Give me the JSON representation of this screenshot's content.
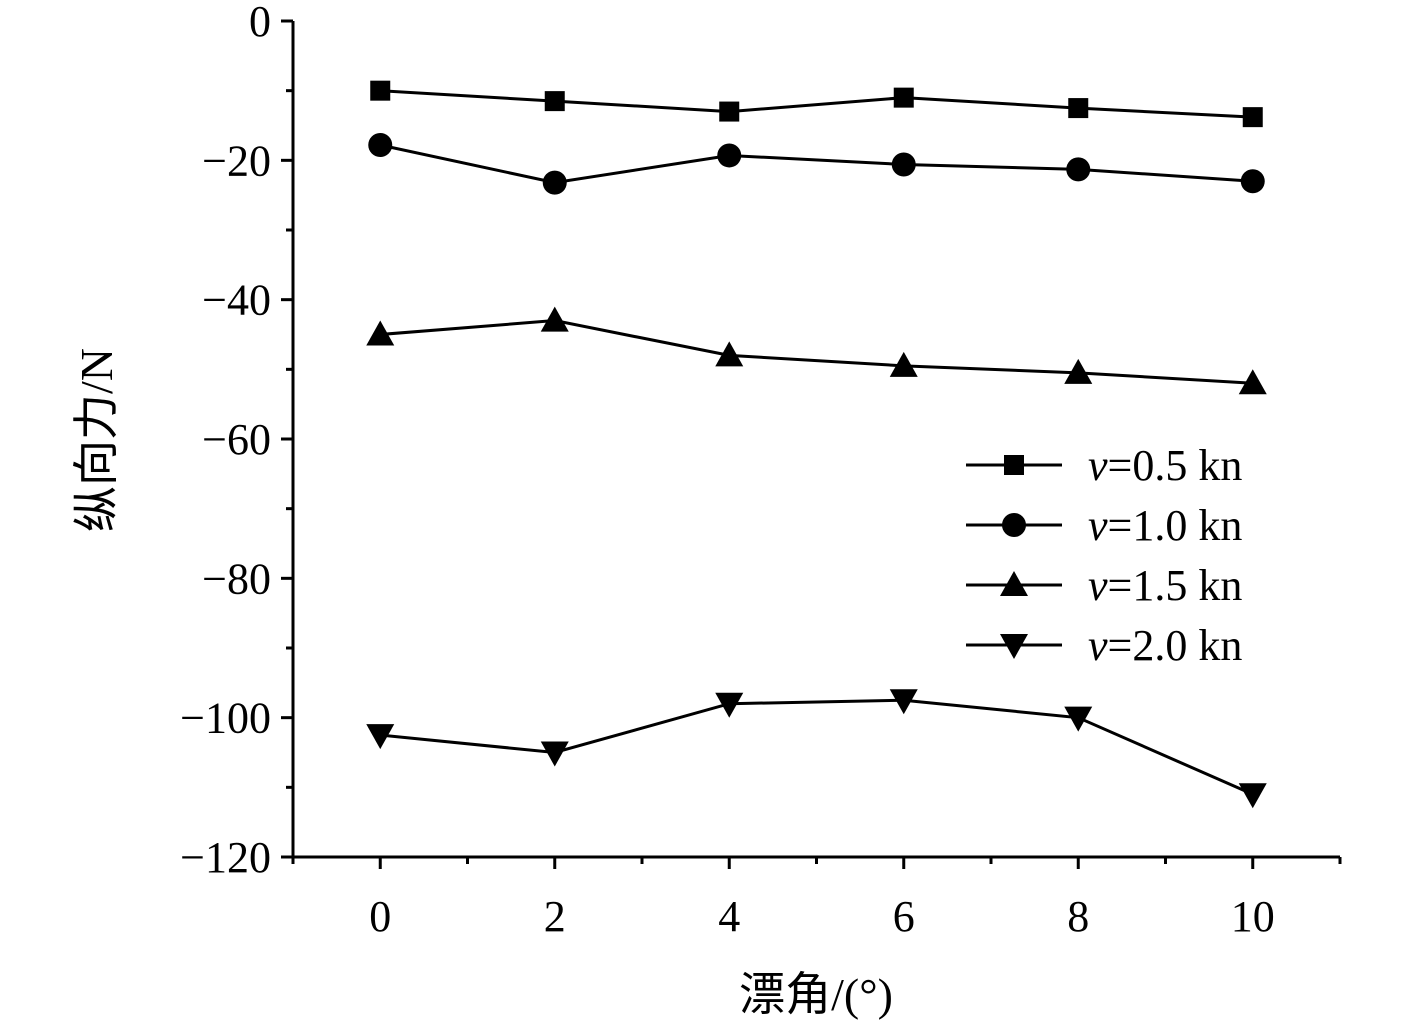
{
  "chart_data": {
    "type": "line",
    "title": "",
    "xlabel": "漂角/(°)",
    "ylabel": "纵向力/N",
    "x": [
      0,
      2,
      4,
      6,
      8,
      10
    ],
    "xlim": [
      -1,
      11
    ],
    "ylim": [
      -120,
      0
    ],
    "xticks": [
      0,
      2,
      4,
      6,
      8,
      10
    ],
    "yticks": [
      0,
      -20,
      -40,
      -60,
      -80,
      -100,
      -120
    ],
    "xtick_labels": [
      "0",
      "2",
      "4",
      "6",
      "8",
      "10"
    ],
    "ytick_labels": [
      "0",
      "−20",
      "−40",
      "−60",
      "−80",
      "−100",
      "−120"
    ],
    "grid": false,
    "legend_position": "right",
    "series": [
      {
        "name": "v=0.5 kn",
        "var": "v",
        "rest": "=0.5 kn",
        "marker": "square",
        "values": [
          -10.0,
          -11.5,
          -13.0,
          -11.0,
          -12.5,
          -13.8
        ]
      },
      {
        "name": "v=1.0 kn",
        "var": "v",
        "rest": "=1.0 kn",
        "marker": "circle",
        "values": [
          -17.8,
          -23.2,
          -19.3,
          -20.6,
          -21.3,
          -23.0
        ]
      },
      {
        "name": "v=1.5 kn",
        "var": "v",
        "rest": "=1.5 kn",
        "marker": "triangle-up",
        "values": [
          -45.0,
          -43.0,
          -48.0,
          -49.5,
          -50.5,
          -52.0
        ]
      },
      {
        "name": "v=2.0 kn",
        "var": "v",
        "rest": "=2.0 kn",
        "marker": "triangle-down",
        "values": [
          -102.5,
          -105.0,
          -98.0,
          -97.5,
          -100.0,
          -111.0
        ]
      }
    ]
  }
}
